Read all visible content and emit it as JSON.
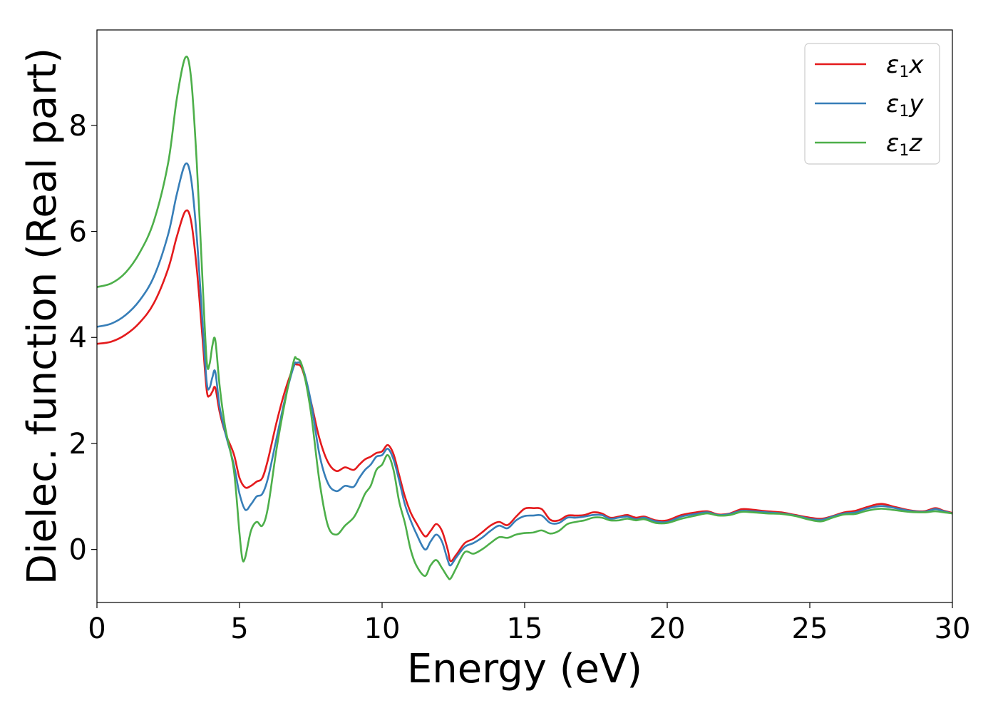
{
  "chart_data": {
    "type": "line",
    "xlabel": "Energy (eV)",
    "ylabel": "Dielec. function (Real part)",
    "xlim": [
      0,
      30
    ],
    "ylim": [
      -1.0,
      9.8
    ],
    "xticks": [
      0,
      5,
      10,
      15,
      20,
      25,
      30
    ],
    "xtick_labels": [
      "0",
      "5",
      "10",
      "15",
      "20",
      "25",
      "30"
    ],
    "yticks": [
      0,
      2,
      4,
      6,
      8
    ],
    "ytick_labels": [
      "0",
      "2",
      "4",
      "6",
      "8"
    ],
    "grid": false,
    "legend_position": "top-right",
    "series": [
      {
        "name": "ε1x",
        "legend": {
          "base": "ε",
          "sub": "1",
          "tail": "x"
        },
        "color": "#e41a1c",
        "points": [
          [
            0,
            3.88
          ],
          [
            0.5,
            3.92
          ],
          [
            1.0,
            4.05
          ],
          [
            1.5,
            4.28
          ],
          [
            2.0,
            4.65
          ],
          [
            2.5,
            5.3
          ],
          [
            2.8,
            5.9
          ],
          [
            3.1,
            6.38
          ],
          [
            3.3,
            6.2
          ],
          [
            3.5,
            5.3
          ],
          [
            3.7,
            4.0
          ],
          [
            3.85,
            3.0
          ],
          [
            3.95,
            2.9
          ],
          [
            4.05,
            2.98
          ],
          [
            4.15,
            3.05
          ],
          [
            4.3,
            2.6
          ],
          [
            4.5,
            2.2
          ],
          [
            4.8,
            1.8
          ],
          [
            5.0,
            1.35
          ],
          [
            5.2,
            1.17
          ],
          [
            5.4,
            1.2
          ],
          [
            5.6,
            1.28
          ],
          [
            5.8,
            1.35
          ],
          [
            6.0,
            1.7
          ],
          [
            6.3,
            2.4
          ],
          [
            6.6,
            3.0
          ],
          [
            6.9,
            3.45
          ],
          [
            7.0,
            3.49
          ],
          [
            7.2,
            3.4
          ],
          [
            7.5,
            2.8
          ],
          [
            7.8,
            2.1
          ],
          [
            8.1,
            1.65
          ],
          [
            8.4,
            1.48
          ],
          [
            8.7,
            1.55
          ],
          [
            9.0,
            1.5
          ],
          [
            9.2,
            1.6
          ],
          [
            9.4,
            1.7
          ],
          [
            9.6,
            1.75
          ],
          [
            9.8,
            1.82
          ],
          [
            10.0,
            1.85
          ],
          [
            10.2,
            1.97
          ],
          [
            10.4,
            1.8
          ],
          [
            10.6,
            1.4
          ],
          [
            10.8,
            1.0
          ],
          [
            11.0,
            0.7
          ],
          [
            11.2,
            0.5
          ],
          [
            11.5,
            0.25
          ],
          [
            11.7,
            0.35
          ],
          [
            11.9,
            0.48
          ],
          [
            12.1,
            0.35
          ],
          [
            12.3,
            0.0
          ],
          [
            12.4,
            -0.22
          ],
          [
            12.6,
            -0.1
          ],
          [
            12.9,
            0.12
          ],
          [
            13.2,
            0.2
          ],
          [
            13.5,
            0.32
          ],
          [
            13.8,
            0.45
          ],
          [
            14.1,
            0.52
          ],
          [
            14.4,
            0.46
          ],
          [
            14.7,
            0.62
          ],
          [
            15.0,
            0.77
          ],
          [
            15.3,
            0.78
          ],
          [
            15.6,
            0.76
          ],
          [
            15.9,
            0.56
          ],
          [
            16.2,
            0.55
          ],
          [
            16.5,
            0.64
          ],
          [
            16.8,
            0.64
          ],
          [
            17.1,
            0.65
          ],
          [
            17.4,
            0.7
          ],
          [
            17.7,
            0.68
          ],
          [
            18.0,
            0.6
          ],
          [
            18.3,
            0.62
          ],
          [
            18.6,
            0.65
          ],
          [
            18.9,
            0.6
          ],
          [
            19.2,
            0.62
          ],
          [
            19.6,
            0.55
          ],
          [
            20.0,
            0.55
          ],
          [
            20.5,
            0.65
          ],
          [
            21.0,
            0.7
          ],
          [
            21.4,
            0.72
          ],
          [
            21.8,
            0.66
          ],
          [
            22.2,
            0.68
          ],
          [
            22.6,
            0.76
          ],
          [
            23.0,
            0.75
          ],
          [
            23.5,
            0.72
          ],
          [
            24.0,
            0.7
          ],
          [
            24.5,
            0.65
          ],
          [
            25.0,
            0.6
          ],
          [
            25.4,
            0.58
          ],
          [
            25.8,
            0.63
          ],
          [
            26.2,
            0.7
          ],
          [
            26.6,
            0.73
          ],
          [
            27.0,
            0.8
          ],
          [
            27.5,
            0.86
          ],
          [
            28.0,
            0.8
          ],
          [
            28.5,
            0.74
          ],
          [
            29.0,
            0.72
          ],
          [
            29.4,
            0.78
          ],
          [
            29.7,
            0.73
          ],
          [
            30.0,
            0.69
          ]
        ]
      },
      {
        "name": "ε1y",
        "legend": {
          "base": "ε",
          "sub": "1",
          "tail": "y"
        },
        "color": "#377eb8",
        "points": [
          [
            0,
            4.2
          ],
          [
            0.5,
            4.26
          ],
          [
            1.0,
            4.42
          ],
          [
            1.5,
            4.7
          ],
          [
            2.0,
            5.15
          ],
          [
            2.5,
            5.95
          ],
          [
            2.8,
            6.7
          ],
          [
            3.1,
            7.27
          ],
          [
            3.3,
            7.0
          ],
          [
            3.5,
            5.9
          ],
          [
            3.7,
            4.3
          ],
          [
            3.85,
            3.15
          ],
          [
            3.95,
            3.05
          ],
          [
            4.05,
            3.25
          ],
          [
            4.15,
            3.35
          ],
          [
            4.3,
            2.7
          ],
          [
            4.5,
            2.2
          ],
          [
            4.8,
            1.6
          ],
          [
            5.0,
            1.05
          ],
          [
            5.2,
            0.75
          ],
          [
            5.4,
            0.85
          ],
          [
            5.6,
            1.0
          ],
          [
            5.8,
            1.05
          ],
          [
            6.0,
            1.35
          ],
          [
            6.3,
            2.1
          ],
          [
            6.6,
            2.85
          ],
          [
            6.9,
            3.45
          ],
          [
            7.0,
            3.52
          ],
          [
            7.2,
            3.45
          ],
          [
            7.5,
            2.8
          ],
          [
            7.8,
            1.8
          ],
          [
            8.1,
            1.25
          ],
          [
            8.4,
            1.1
          ],
          [
            8.7,
            1.2
          ],
          [
            9.0,
            1.18
          ],
          [
            9.2,
            1.35
          ],
          [
            9.4,
            1.5
          ],
          [
            9.6,
            1.6
          ],
          [
            9.8,
            1.75
          ],
          [
            10.0,
            1.78
          ],
          [
            10.2,
            1.9
          ],
          [
            10.4,
            1.7
          ],
          [
            10.6,
            1.3
          ],
          [
            10.8,
            0.85
          ],
          [
            11.0,
            0.55
          ],
          [
            11.2,
            0.3
          ],
          [
            11.5,
            0.0
          ],
          [
            11.7,
            0.15
          ],
          [
            11.9,
            0.28
          ],
          [
            12.1,
            0.15
          ],
          [
            12.3,
            -0.2
          ],
          [
            12.4,
            -0.3
          ],
          [
            12.6,
            -0.15
          ],
          [
            12.9,
            0.05
          ],
          [
            13.2,
            0.12
          ],
          [
            13.5,
            0.22
          ],
          [
            13.8,
            0.35
          ],
          [
            14.1,
            0.45
          ],
          [
            14.4,
            0.4
          ],
          [
            14.7,
            0.55
          ],
          [
            15.0,
            0.63
          ],
          [
            15.3,
            0.64
          ],
          [
            15.6,
            0.64
          ],
          [
            15.9,
            0.5
          ],
          [
            16.2,
            0.5
          ],
          [
            16.5,
            0.6
          ],
          [
            16.8,
            0.6
          ],
          [
            17.1,
            0.62
          ],
          [
            17.4,
            0.65
          ],
          [
            17.7,
            0.65
          ],
          [
            18.0,
            0.58
          ],
          [
            18.3,
            0.6
          ],
          [
            18.6,
            0.62
          ],
          [
            18.9,
            0.57
          ],
          [
            19.2,
            0.6
          ],
          [
            19.6,
            0.53
          ],
          [
            20.0,
            0.52
          ],
          [
            20.5,
            0.62
          ],
          [
            21.0,
            0.67
          ],
          [
            21.4,
            0.7
          ],
          [
            21.8,
            0.65
          ],
          [
            22.2,
            0.67
          ],
          [
            22.6,
            0.73
          ],
          [
            23.0,
            0.72
          ],
          [
            23.5,
            0.7
          ],
          [
            24.0,
            0.68
          ],
          [
            24.5,
            0.64
          ],
          [
            25.0,
            0.58
          ],
          [
            25.4,
            0.56
          ],
          [
            25.8,
            0.62
          ],
          [
            26.2,
            0.68
          ],
          [
            26.6,
            0.7
          ],
          [
            27.0,
            0.77
          ],
          [
            27.5,
            0.82
          ],
          [
            28.0,
            0.78
          ],
          [
            28.5,
            0.73
          ],
          [
            29.0,
            0.71
          ],
          [
            29.4,
            0.76
          ],
          [
            29.7,
            0.72
          ],
          [
            30.0,
            0.68
          ]
        ]
      },
      {
        "name": "ε1z",
        "legend": {
          "base": "ε",
          "sub": "1",
          "tail": "z"
        },
        "color": "#4daf4a",
        "points": [
          [
            0,
            4.95
          ],
          [
            0.5,
            5.02
          ],
          [
            1.0,
            5.22
          ],
          [
            1.5,
            5.6
          ],
          [
            2.0,
            6.2
          ],
          [
            2.5,
            7.3
          ],
          [
            2.8,
            8.5
          ],
          [
            3.1,
            9.28
          ],
          [
            3.3,
            8.9
          ],
          [
            3.5,
            7.3
          ],
          [
            3.7,
            5.1
          ],
          [
            3.85,
            3.55
          ],
          [
            3.95,
            3.5
          ],
          [
            4.05,
            3.85
          ],
          [
            4.15,
            3.95
          ],
          [
            4.3,
            3.1
          ],
          [
            4.5,
            2.3
          ],
          [
            4.8,
            1.5
          ],
          [
            5.0,
            0.3
          ],
          [
            5.1,
            -0.18
          ],
          [
            5.2,
            -0.15
          ],
          [
            5.4,
            0.35
          ],
          [
            5.6,
            0.52
          ],
          [
            5.8,
            0.45
          ],
          [
            6.0,
            0.8
          ],
          [
            6.3,
            1.9
          ],
          [
            6.6,
            2.8
          ],
          [
            6.9,
            3.55
          ],
          [
            7.0,
            3.6
          ],
          [
            7.2,
            3.45
          ],
          [
            7.5,
            2.6
          ],
          [
            7.8,
            1.3
          ],
          [
            8.1,
            0.45
          ],
          [
            8.4,
            0.28
          ],
          [
            8.7,
            0.45
          ],
          [
            9.0,
            0.6
          ],
          [
            9.2,
            0.8
          ],
          [
            9.4,
            1.05
          ],
          [
            9.6,
            1.2
          ],
          [
            9.8,
            1.5
          ],
          [
            10.0,
            1.6
          ],
          [
            10.2,
            1.78
          ],
          [
            10.4,
            1.5
          ],
          [
            10.6,
            0.9
          ],
          [
            10.8,
            0.5
          ],
          [
            11.0,
            0.0
          ],
          [
            11.2,
            -0.3
          ],
          [
            11.5,
            -0.5
          ],
          [
            11.7,
            -0.3
          ],
          [
            11.9,
            -0.2
          ],
          [
            12.1,
            -0.35
          ],
          [
            12.3,
            -0.52
          ],
          [
            12.4,
            -0.55
          ],
          [
            12.6,
            -0.35
          ],
          [
            12.9,
            -0.05
          ],
          [
            13.2,
            -0.08
          ],
          [
            13.5,
            0.0
          ],
          [
            13.8,
            0.12
          ],
          [
            14.1,
            0.23
          ],
          [
            14.4,
            0.22
          ],
          [
            14.7,
            0.28
          ],
          [
            15.0,
            0.31
          ],
          [
            15.3,
            0.32
          ],
          [
            15.6,
            0.36
          ],
          [
            15.9,
            0.3
          ],
          [
            16.2,
            0.35
          ],
          [
            16.5,
            0.48
          ],
          [
            16.8,
            0.52
          ],
          [
            17.1,
            0.55
          ],
          [
            17.4,
            0.6
          ],
          [
            17.7,
            0.6
          ],
          [
            18.0,
            0.55
          ],
          [
            18.3,
            0.55
          ],
          [
            18.6,
            0.58
          ],
          [
            18.9,
            0.55
          ],
          [
            19.2,
            0.57
          ],
          [
            19.6,
            0.5
          ],
          [
            20.0,
            0.5
          ],
          [
            20.5,
            0.58
          ],
          [
            21.0,
            0.64
          ],
          [
            21.4,
            0.68
          ],
          [
            21.8,
            0.64
          ],
          [
            22.2,
            0.65
          ],
          [
            22.6,
            0.71
          ],
          [
            23.0,
            0.7
          ],
          [
            23.5,
            0.68
          ],
          [
            24.0,
            0.67
          ],
          [
            24.5,
            0.63
          ],
          [
            25.0,
            0.56
          ],
          [
            25.4,
            0.53
          ],
          [
            25.8,
            0.6
          ],
          [
            26.2,
            0.66
          ],
          [
            26.6,
            0.67
          ],
          [
            27.0,
            0.73
          ],
          [
            27.5,
            0.77
          ],
          [
            28.0,
            0.74
          ],
          [
            28.5,
            0.71
          ],
          [
            29.0,
            0.7
          ],
          [
            29.4,
            0.72
          ],
          [
            29.7,
            0.7
          ],
          [
            30.0,
            0.68
          ]
        ]
      }
    ]
  }
}
